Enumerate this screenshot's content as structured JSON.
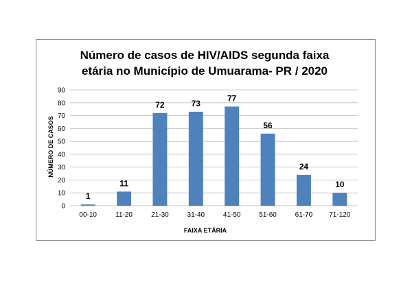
{
  "chart_data": {
    "type": "bar",
    "title": "Número de casos de HIV/AIDS segunda faixa etária no Município de Umuarama- PR / 2020",
    "title_lines": [
      "Número de casos de HIV/AIDS segunda faixa",
      "etária no Município de Umuarama- PR / 2020"
    ],
    "categories": [
      "00-10",
      "11-20",
      "21-30",
      "31-40",
      "41-50",
      "51-60",
      "61-70",
      "71-120"
    ],
    "values": [
      1,
      11,
      72,
      73,
      77,
      56,
      24,
      10
    ],
    "xlabel": "FAIXA ETÁRIA",
    "ylabel": "NÚMERO DE CASOS",
    "ylim": [
      0,
      90
    ],
    "yticks": [
      0,
      10,
      20,
      30,
      40,
      50,
      60,
      70,
      80,
      90
    ],
    "grid": true,
    "legend": "none",
    "bar_color": "#4f81bd",
    "grid_color": "#c8c8c8"
  }
}
